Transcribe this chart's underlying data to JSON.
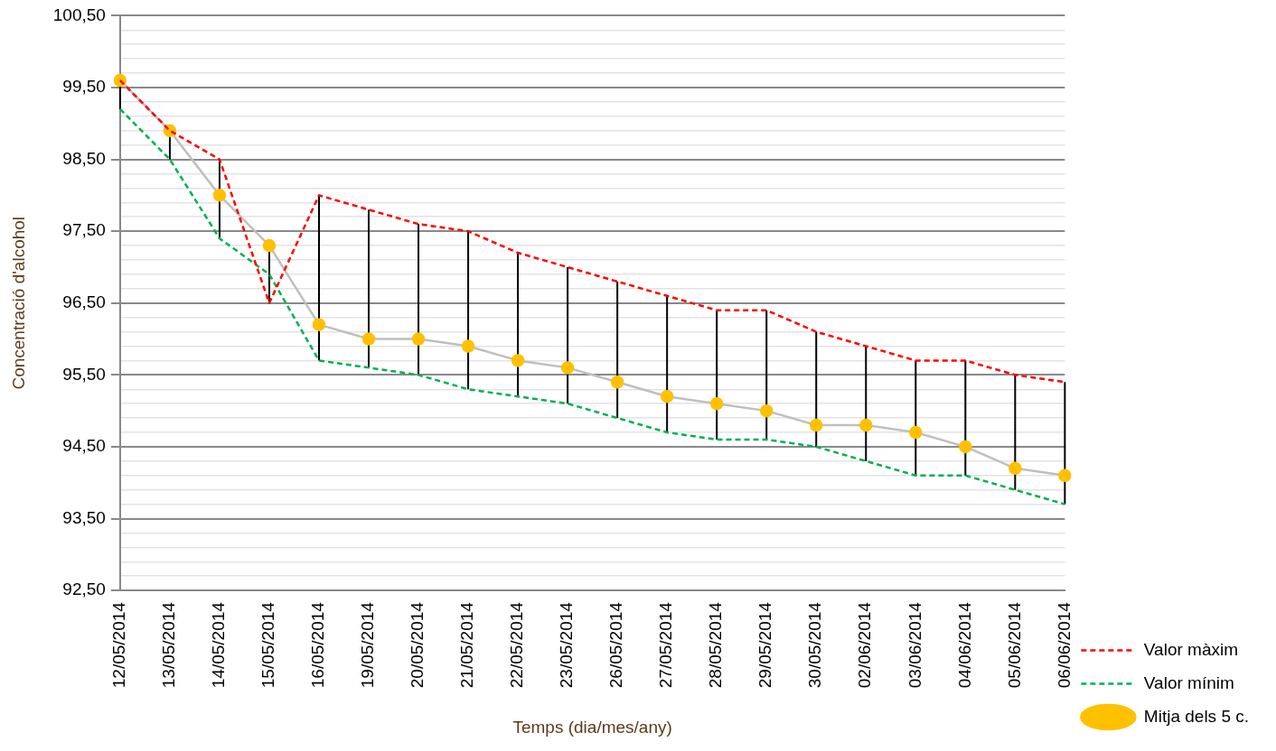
{
  "chart_data": {
    "type": "line",
    "xlabel": "Temps (dia/mes/any)",
    "ylabel": "Concentració d'alcohol",
    "categories": [
      "12/05/2014",
      "13/05/2014",
      "14/05/2014",
      "15/05/2014",
      "16/05/2014",
      "19/05/2014",
      "20/05/2014",
      "21/05/2014",
      "22/05/2014",
      "23/05/2014",
      "26/05/2014",
      "27/05/2014",
      "28/05/2014",
      "29/05/2014",
      "30/05/2014",
      "02/06/2014",
      "03/06/2014",
      "04/06/2014",
      "05/06/2014",
      "06/06/2014"
    ],
    "series": [
      {
        "name": "Valor màxim",
        "color": "#ff0000",
        "line_style": "dashed",
        "marker": "none",
        "values": [
          99.6,
          98.9,
          98.5,
          96.5,
          98.0,
          97.8,
          97.6,
          97.5,
          97.2,
          97.0,
          96.8,
          96.6,
          96.4,
          96.4,
          96.1,
          95.9,
          95.7,
          95.7,
          95.5,
          95.4
        ]
      },
      {
        "name": "Valor mínim",
        "color": "#00b050",
        "line_style": "dashed",
        "marker": "none",
        "values": [
          99.2,
          98.5,
          97.4,
          96.9,
          95.7,
          95.6,
          95.5,
          95.3,
          95.2,
          95.1,
          94.9,
          94.7,
          94.6,
          94.6,
          94.5,
          94.3,
          94.1,
          94.1,
          93.9,
          93.7
        ]
      },
      {
        "name": "Mitja dels 5 c.",
        "color": "#bfbfbf",
        "colors": [
          "#ffc000",
          "#ffc000",
          "#ffc000",
          "#ffc000",
          "#ffc000",
          "#ffc000",
          "#ffc000",
          "#ffc000",
          "#ffc000",
          "#ffc000",
          "#ffc000",
          "#ffc000",
          "#ffc000",
          "#ffc000",
          "#ffc000",
          "#ffc000",
          "#ffc000",
          "#ffc000",
          "#ffc000",
          "#ffc000"
        ],
        "line_style": "solid",
        "marker": "circle",
        "values": [
          99.6,
          98.9,
          98.0,
          97.3,
          96.2,
          96.0,
          96.0,
          95.9,
          95.7,
          95.6,
          95.4,
          95.2,
          95.1,
          95.0,
          94.8,
          94.8,
          94.7,
          94.5,
          94.2,
          94.1
        ],
        "errors": [
          [
            99.2,
            99.6
          ],
          [
            98.5,
            98.9
          ],
          [
            97.4,
            98.5
          ],
          [
            96.5,
            97.3
          ],
          [
            95.7,
            98.0
          ],
          [
            95.6,
            97.8
          ],
          [
            95.5,
            97.6
          ],
          [
            95.3,
            97.5
          ],
          [
            95.2,
            97.2
          ],
          [
            95.1,
            97.0
          ],
          [
            94.9,
            96.8
          ],
          [
            94.7,
            96.6
          ],
          [
            94.6,
            96.4
          ],
          [
            94.6,
            96.4
          ],
          [
            94.5,
            96.1
          ],
          [
            94.3,
            95.9
          ],
          [
            94.1,
            95.7
          ],
          [
            94.1,
            95.7
          ],
          [
            93.9,
            95.5
          ],
          [
            93.7,
            95.4
          ]
        ]
      }
    ],
    "ylim": [
      92.5,
      100.5
    ],
    "yticks": [
      {
        "value": 92.5,
        "label": "92,50"
      },
      {
        "value": 92.7,
        "label": null
      },
      {
        "value": 92.9,
        "label": null
      },
      {
        "value": 93.1,
        "label": null
      },
      {
        "value": 93.3,
        "label": null
      },
      {
        "value": 93.5,
        "label": "93,50"
      },
      {
        "value": 93.7,
        "label": null
      },
      {
        "value": 93.9,
        "label": null
      },
      {
        "value": 94.1,
        "label": null
      },
      {
        "value": 94.3,
        "label": null
      },
      {
        "value": 94.5,
        "label": "94,50"
      },
      {
        "value": 94.7,
        "label": null
      },
      {
        "value": 94.9,
        "label": null
      },
      {
        "value": 95.1,
        "label": null
      },
      {
        "value": 95.3,
        "label": null
      },
      {
        "value": 95.5,
        "label": "95,50"
      },
      {
        "value": 95.7,
        "label": null
      },
      {
        "value": 95.9,
        "label": null
      },
      {
        "value": 96.1,
        "label": null
      },
      {
        "value": 96.3,
        "label": null
      },
      {
        "value": 96.5,
        "label": "96,50"
      },
      {
        "value": 96.7,
        "label": null
      },
      {
        "value": 96.9,
        "label": null
      },
      {
        "value": 97.1,
        "label": null
      },
      {
        "value": 97.3,
        "label": null
      },
      {
        "value": 97.5,
        "label": "97,50"
      },
      {
        "value": 97.7,
        "label": null
      },
      {
        "value": 97.9,
        "label": null
      },
      {
        "value": 98.1,
        "label": null
      },
      {
        "value": 98.3,
        "label": null
      },
      {
        "value": 98.5,
        "label": "98,50"
      },
      {
        "value": 98.7,
        "label": null
      },
      {
        "value": 98.9,
        "label": null
      },
      {
        "value": 99.1,
        "label": null
      },
      {
        "value": 99.3,
        "label": null
      },
      {
        "value": 99.5,
        "label": "99,50"
      },
      {
        "value": 99.7,
        "label": null
      },
      {
        "value": 99.9,
        "label": null
      },
      {
        "value": 100.1,
        "label": null
      },
      {
        "value": 100.3,
        "label": null
      },
      {
        "value": 100.5,
        "label": "100,50"
      }
    ],
    "grid": "y",
    "legend": "right"
  }
}
